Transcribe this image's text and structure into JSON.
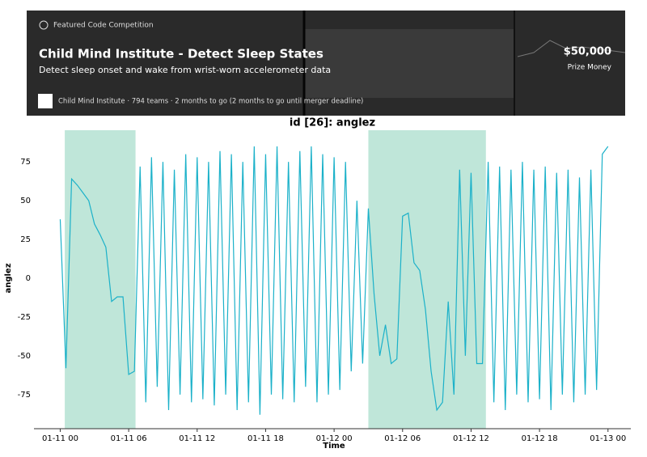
{
  "banner": {
    "tag": "Featured Code Competition",
    "title": "Child Mind Institute - Detect Sleep States",
    "subtitle": "Detect sleep onset and wake from wrist-worn accelerometer data",
    "prize": "$50,000",
    "prize_label": "Prize Money",
    "footer": "Child Mind Institute · 794 teams · 2 months to go (2 months to go until merger deadline)"
  },
  "chart_data": {
    "type": "line",
    "title": "id [26]: anglez",
    "xlabel": "Time",
    "ylabel": "anglez",
    "x": [
      0,
      0.5,
      1,
      1.5,
      2,
      2.5,
      3,
      3.5,
      4,
      4.5,
      5,
      5.5,
      6,
      6.5,
      7,
      7.5,
      8,
      8.5,
      9,
      9.5,
      10,
      10.5,
      11,
      11.5,
      12,
      12.5,
      13,
      13.5,
      14,
      14.5,
      15,
      15.5,
      16,
      16.5,
      17,
      17.5,
      18,
      18.5,
      19,
      19.5,
      20,
      20.5,
      21,
      21.5,
      22,
      22.5,
      23,
      23.5,
      24,
      24.5,
      25,
      25.5,
      26,
      26.5,
      27,
      27.5,
      28,
      28.5,
      29,
      29.5,
      30,
      30.5,
      31,
      31.5,
      32,
      32.5,
      33,
      33.5,
      34,
      34.5,
      35,
      35.5,
      36,
      36.5,
      37,
      37.5,
      38,
      38.5,
      39,
      39.5,
      40,
      40.5,
      41,
      41.5,
      42,
      42.5,
      43,
      43.5,
      44,
      44.5,
      45,
      45.5,
      46,
      46.5,
      47,
      47.5,
      48
    ],
    "series": [
      {
        "name": "anglez",
        "color": "#1bb1c9",
        "values": [
          38,
          -58,
          64,
          60,
          55,
          50,
          35,
          28,
          20,
          -15,
          -12,
          -12,
          -62,
          -60,
          72,
          -80,
          78,
          -70,
          75,
          -85,
          70,
          -75,
          80,
          -80,
          78,
          -78,
          75,
          -82,
          82,
          -75,
          80,
          -85,
          75,
          -80,
          85,
          -88,
          80,
          -75,
          85,
          -78,
          75,
          -80,
          82,
          -70,
          85,
          -80,
          80,
          -75,
          78,
          -72,
          75,
          -60,
          50,
          -55,
          45,
          -10,
          -50,
          -30,
          -55,
          -52,
          40,
          42,
          10,
          5,
          -20,
          -60,
          -85,
          -80,
          -15,
          -75,
          70,
          -50,
          68,
          -55,
          -55,
          75,
          -80,
          72,
          -85,
          70,
          -75,
          75,
          -80,
          70,
          -78,
          72,
          -85,
          68,
          -75,
          70,
          -80,
          65,
          -75,
          70,
          -72,
          80,
          85
        ]
      }
    ],
    "spans": [
      [
        0.4,
        6.6
      ],
      [
        27,
        37.3
      ]
    ],
    "span_color": "#bfe6d9",
    "xlim": [
      -2.3,
      50
    ],
    "xticks": [
      {
        "value": 0,
        "label": "01-11 00"
      },
      {
        "value": 6,
        "label": "01-11 06"
      },
      {
        "value": 12,
        "label": "01-11 12"
      },
      {
        "value": 18,
        "label": "01-11 18"
      },
      {
        "value": 24,
        "label": "01-12 00"
      },
      {
        "value": 30,
        "label": "01-12 06"
      },
      {
        "value": 36,
        "label": "01-12 12"
      },
      {
        "value": 42,
        "label": "01-12 18"
      },
      {
        "value": 48,
        "label": "01-13 00"
      }
    ],
    "ylim": [
      -97,
      97
    ],
    "yticks": [
      -75,
      -50,
      -25,
      0,
      25,
      50,
      75
    ],
    "grid": false
  }
}
